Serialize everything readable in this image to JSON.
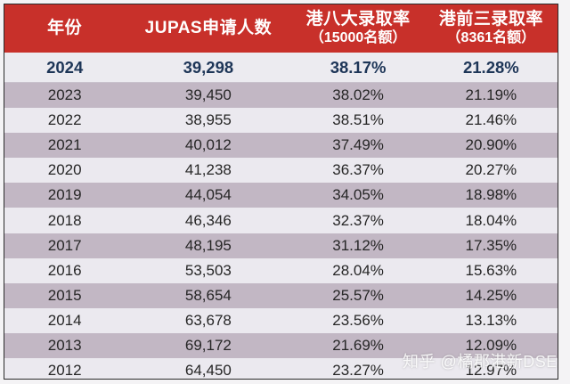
{
  "table": {
    "headers": [
      {
        "main": "年份",
        "sub": ""
      },
      {
        "main": "JUPAS申请人数",
        "sub": ""
      },
      {
        "main": "港八大录取率",
        "sub": "（15000名额）"
      },
      {
        "main": "港前三录取率",
        "sub": "（8361名额）"
      }
    ],
    "highlight_row": {
      "year": "2024",
      "applicants": "39,298",
      "top8_rate": "38.17%",
      "top3_rate": "21.28%"
    },
    "rows": [
      {
        "year": "2023",
        "applicants": "39,450",
        "top8_rate": "38.02%",
        "top3_rate": "21.19%"
      },
      {
        "year": "2022",
        "applicants": "38,955",
        "top8_rate": "38.51%",
        "top3_rate": "21.46%"
      },
      {
        "year": "2021",
        "applicants": "40,012",
        "top8_rate": "37.49%",
        "top3_rate": "20.90%"
      },
      {
        "year": "2020",
        "applicants": "41,238",
        "top8_rate": "36.37%",
        "top3_rate": "20.27%"
      },
      {
        "year": "2019",
        "applicants": "44,054",
        "top8_rate": "34.05%",
        "top3_rate": "18.98%"
      },
      {
        "year": "2018",
        "applicants": "46,346",
        "top8_rate": "32.37%",
        "top3_rate": "18.04%"
      },
      {
        "year": "2017",
        "applicants": "48,195",
        "top8_rate": "31.12%",
        "top3_rate": "17.35%"
      },
      {
        "year": "2016",
        "applicants": "53,503",
        "top8_rate": "28.04%",
        "top3_rate": "15.63%"
      },
      {
        "year": "2015",
        "applicants": "58,654",
        "top8_rate": "25.57%",
        "top3_rate": "14.25%"
      },
      {
        "year": "2014",
        "applicants": "63,678",
        "top8_rate": "23.56%",
        "top3_rate": "13.13%"
      },
      {
        "year": "2013",
        "applicants": "69,172",
        "top8_rate": "21.69%",
        "top3_rate": "12.09%"
      },
      {
        "year": "2012",
        "applicants": "64,450",
        "top8_rate": "23.27%",
        "top3_rate": "12.97%"
      }
    ]
  },
  "colors": {
    "header_bg": "#c8302a",
    "header_text": "#ffffff",
    "highlight_text": "#1d3557",
    "alt_row_bg": "#c2b7c4",
    "plain_row_bg": "#ebe9ef"
  },
  "watermark": "知乎 @橘郡港新DSE",
  "chart_data": {
    "type": "table",
    "title": "",
    "columns": [
      "年份",
      "JUPAS申请人数",
      "港八大录取率（15000名额）",
      "港前三录取率（8361名额）"
    ],
    "rows": [
      [
        "2024",
        39298,
        38.17,
        21.28
      ],
      [
        "2023",
        39450,
        38.02,
        21.19
      ],
      [
        "2022",
        38955,
        38.51,
        21.46
      ],
      [
        "2021",
        40012,
        37.49,
        20.9
      ],
      [
        "2020",
        41238,
        36.37,
        20.27
      ],
      [
        "2019",
        44054,
        34.05,
        18.98
      ],
      [
        "2018",
        46346,
        32.37,
        18.04
      ],
      [
        "2017",
        48195,
        31.12,
        17.35
      ],
      [
        "2016",
        53503,
        28.04,
        15.63
      ],
      [
        "2015",
        58654,
        25.57,
        14.25
      ],
      [
        "2014",
        63678,
        23.56,
        13.13
      ],
      [
        "2013",
        69172,
        21.69,
        12.09
      ],
      [
        "2012",
        64450,
        23.27,
        12.97
      ]
    ],
    "units": [
      "year",
      "applicants",
      "percent",
      "percent"
    ]
  }
}
